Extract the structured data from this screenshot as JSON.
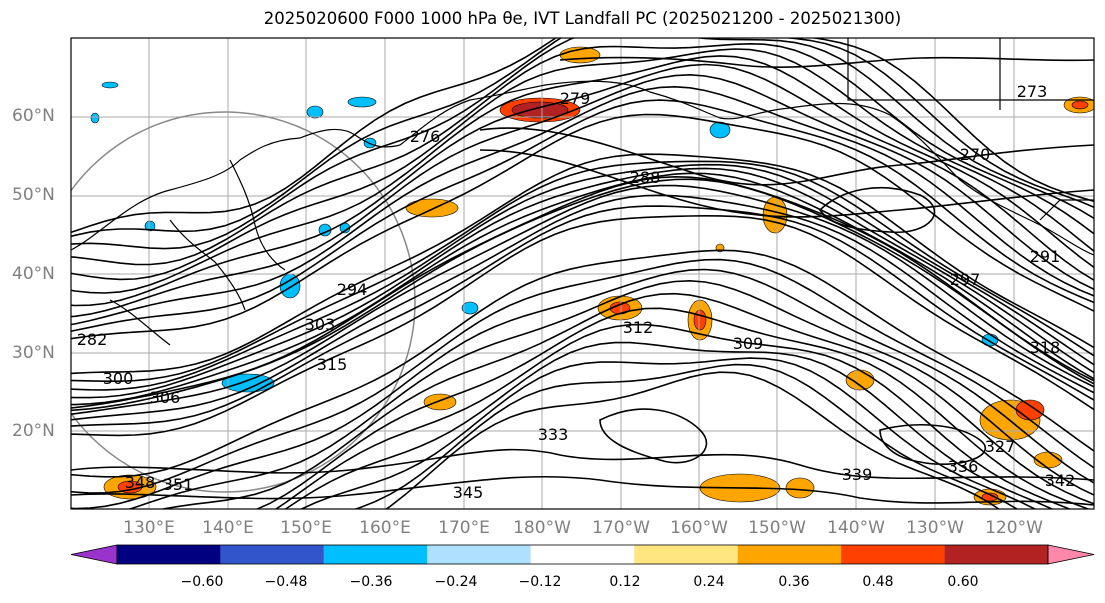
{
  "title": "2025020600 F000 1000 hPa θe, IVT Landfall PC (2025021200 - 2025021300)",
  "lat_labels": [
    "60°N",
    "50°N",
    "40°N",
    "30°N",
    "20°N"
  ],
  "lon_labels": [
    "130°E",
    "140°E",
    "150°E",
    "160°E",
    "170°E",
    "180°W",
    "170°W",
    "160°W",
    "150°W",
    "140°W",
    "130°W",
    "120°W"
  ],
  "contour_labels": [
    "279",
    "276",
    "273",
    "270",
    "288",
    "291",
    "297",
    "294",
    "303",
    "312",
    "309",
    "315",
    "318",
    "300",
    "306",
    "282",
    "333",
    "327",
    "348",
    "351",
    "345",
    "342",
    "339",
    "336"
  ],
  "colorbar": {
    "ticks": [
      "−0.60",
      "−0.48",
      "−0.36",
      "−0.24",
      "−0.12",
      "0.12",
      "0.24",
      "0.36",
      "0.48",
      "0.60"
    ],
    "colors": [
      "#9933cc",
      "#000080",
      "#3355cc",
      "#00bfff",
      "#b0e0ff",
      "#ffffff",
      "#ffe680",
      "#ffa500",
      "#ff4000",
      "#b22222",
      "#ff88aa"
    ]
  },
  "colors": {
    "contour": "#000000",
    "graticule": "#aaaaaa",
    "land_outline": "#000000",
    "label": "#808080"
  }
}
